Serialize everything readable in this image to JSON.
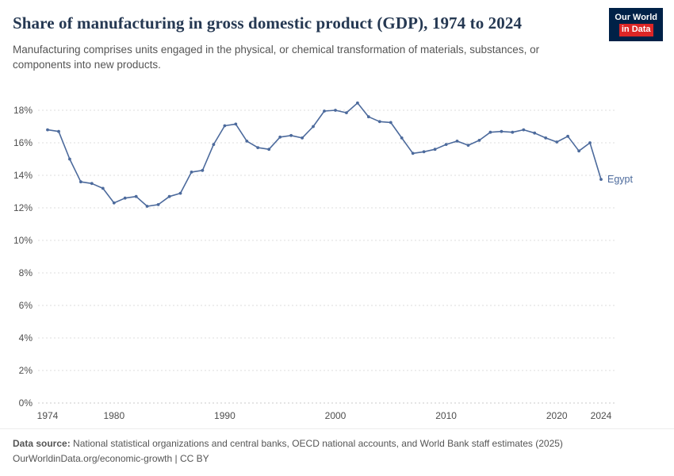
{
  "logo": {
    "line1": "Our World",
    "line2": "in Data"
  },
  "header": {
    "title": "Share of manufacturing in gross domestic product (GDP), 1974 to 2024",
    "subtitle": "Manufacturing comprises units engaged in the physical, or chemical transformation of materials, substances, or components into new products."
  },
  "chart_data": {
    "type": "line",
    "title": "Share of manufacturing in gross domestic product (GDP), 1974 to 2024",
    "xlabel": "",
    "ylabel": "",
    "ylim": [
      0,
      18
    ],
    "y_ticks": [
      0,
      2,
      4,
      6,
      8,
      10,
      12,
      14,
      16,
      18
    ],
    "y_tick_suffix": "%",
    "x_ticks": [
      1974,
      1980,
      1990,
      2000,
      2010,
      2020,
      2024
    ],
    "grid": "horizontal-dashed",
    "legend": "end-of-line-label",
    "x": [
      1974,
      1975,
      1976,
      1977,
      1978,
      1979,
      1980,
      1981,
      1982,
      1983,
      1984,
      1985,
      1986,
      1987,
      1988,
      1989,
      1990,
      1991,
      1992,
      1993,
      1994,
      1995,
      1996,
      1997,
      1998,
      1999,
      2000,
      2001,
      2002,
      2003,
      2004,
      2005,
      2006,
      2007,
      2008,
      2009,
      2010,
      2011,
      2012,
      2013,
      2014,
      2015,
      2016,
      2017,
      2018,
      2019,
      2020,
      2021,
      2022,
      2023,
      2024
    ],
    "series": [
      {
        "name": "Egypt",
        "color": "#4c6a9c",
        "values": [
          16.8,
          16.7,
          15.0,
          13.6,
          13.5,
          13.2,
          12.3,
          12.6,
          12.7,
          12.1,
          12.2,
          12.7,
          12.9,
          14.2,
          14.3,
          15.9,
          17.05,
          17.15,
          16.1,
          15.7,
          15.6,
          16.35,
          16.45,
          16.3,
          17.0,
          17.95,
          18.0,
          17.85,
          18.45,
          17.6,
          17.3,
          17.25,
          16.3,
          15.35,
          15.45,
          15.6,
          15.9,
          16.1,
          15.85,
          16.15,
          16.65,
          16.7,
          16.65,
          16.8,
          16.6,
          16.3,
          16.05,
          16.4,
          15.5,
          16.0,
          13.75
        ]
      }
    ]
  },
  "footer": {
    "source_label": "Data source:",
    "source_text": "National statistical organizations and central banks, OECD national accounts, and World Bank staff estimates (2025)",
    "link": "OurWorldinData.org/economic-growth",
    "separator": "|",
    "license": "CC BY"
  },
  "colors": {
    "line": "#4c6a9c",
    "title": "#253852",
    "subtitle": "#555555",
    "axis_label": "#4e4e4e",
    "grid": "#dedede",
    "grid_zero": "#c8c8c8",
    "logo_bg": "#002147",
    "logo_accent": "#dc2626"
  }
}
